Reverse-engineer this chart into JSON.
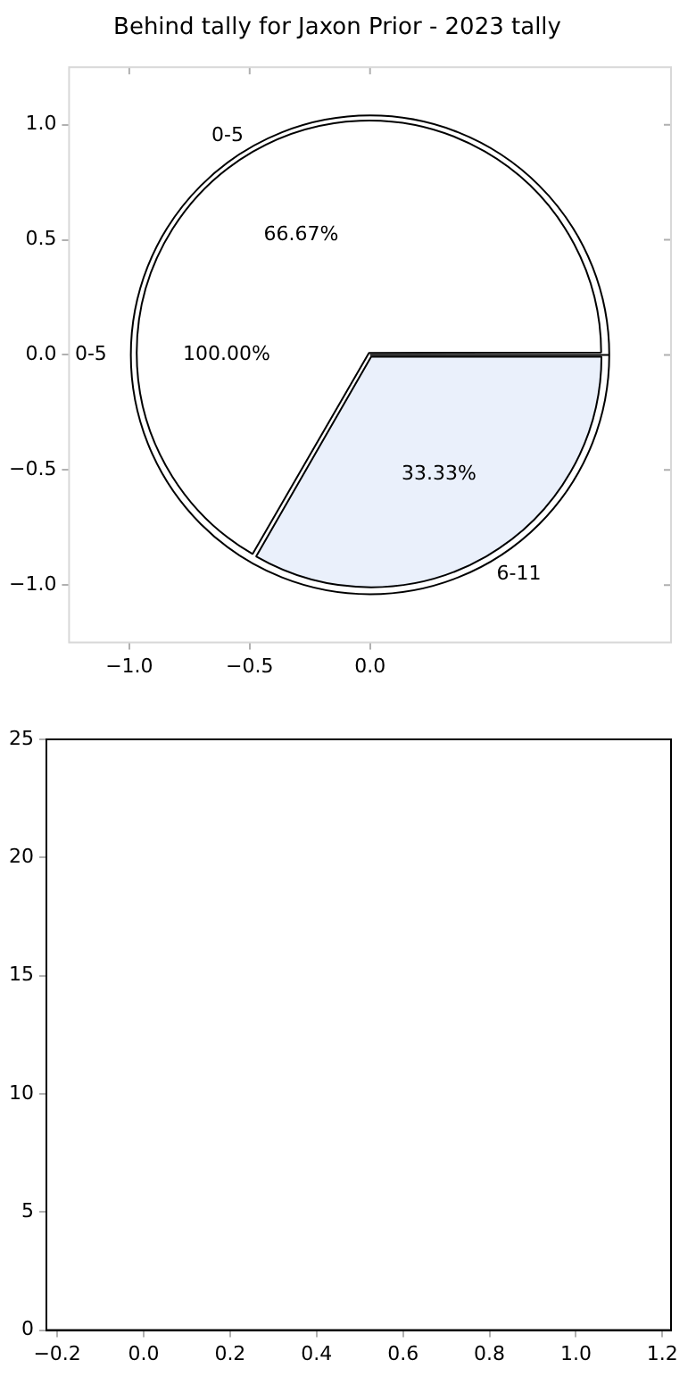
{
  "chart_data": [
    {
      "type": "scatter",
      "title": "Behind tally for Jaxon Prior - 2023 tally",
      "xlim": [
        -1.25,
        1.25
      ],
      "ylim": [
        -1.25,
        1.25
      ],
      "xticks": [
        {
          "value": -1,
          "label": "−1.0"
        },
        {
          "value": -0.5,
          "label": "−0.5"
        },
        {
          "value": 0,
          "label": "0.0"
        }
      ],
      "yticks": [
        {
          "value": -1,
          "label": "−1.0"
        },
        {
          "value": -0.5,
          "label": "−0.5"
        },
        {
          "value": 0,
          "label": "0.0"
        },
        {
          "value": 0.5,
          "label": "0.5"
        },
        {
          "value": 1,
          "label": "1.0"
        }
      ]
    },
    {
      "type": "pie",
      "categories": [
        "0-5"
      ],
      "values": [
        100
      ],
      "colors": [
        "#ffffff"
      ],
      "value_labels": [
        "100.00%"
      ]
    },
    {
      "type": "pie",
      "categories": [
        "0-5",
        "6-11"
      ],
      "values": [
        66.67,
        33.33
      ],
      "colors": [
        "#ffffff",
        "#eaf0fb"
      ],
      "value_labels": [
        "66.67%",
        "33.33%"
      ]
    },
    {
      "type": "scatter",
      "xlim": [
        -0.225,
        1.22
      ],
      "ylim": [
        0,
        25
      ],
      "xticks": [
        {
          "value": -0.2,
          "label": "−0.2"
        },
        {
          "value": 0,
          "label": "0.0"
        },
        {
          "value": 0.2,
          "label": "0.2"
        },
        {
          "value": 0.4,
          "label": "0.4"
        },
        {
          "value": 0.6,
          "label": "0.6"
        },
        {
          "value": 0.8,
          "label": "0.8"
        },
        {
          "value": 1,
          "label": "1.0"
        },
        {
          "value": 1.2,
          "label": "1.2"
        }
      ],
      "yticks": [
        0,
        5,
        10,
        15,
        20,
        25
      ]
    }
  ]
}
